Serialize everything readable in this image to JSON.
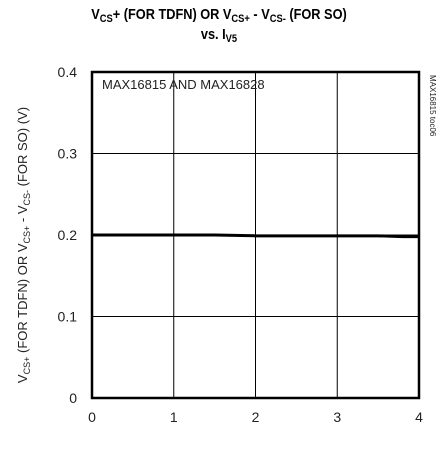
{
  "title_line1": {
    "a": "V",
    "a_sub": "CS",
    "b": "+ (FOR TDFN) OR V",
    "b_sub": "CS+",
    "c": " - V",
    "c_sub": "CS-",
    "d": " (FOR SO)"
  },
  "title_line2": {
    "a": "vs. I",
    "a_sub": "V5"
  },
  "chart_data": {
    "type": "line",
    "ylabel": "V_CS+ (FOR TDFN) OR V_CS+ - V_CS- (FOR SO) (V)",
    "ylabel_parts": [
      "V",
      "CS+",
      " (FOR TDFN) OR V",
      "CS+",
      " - V",
      "CS-",
      " (FOR SO) (V)"
    ],
    "xlim": [
      0,
      4
    ],
    "ylim": [
      0,
      0.4
    ],
    "x_ticks": [
      "0",
      "1",
      "2",
      "3",
      "4"
    ],
    "y_ticks": [
      "0",
      "0.1",
      "0.2",
      "0.3",
      "0.4"
    ],
    "grid": true,
    "annotation": "MAX16815 AND MAX16828",
    "side_label": "MAX16815 toc06",
    "series": [
      {
        "x": [
          0,
          0.5,
          1,
          1.5,
          2,
          2.5,
          3,
          3.5,
          3.8,
          4
        ],
        "y": [
          0.2,
          0.2,
          0.2,
          0.2,
          0.199,
          0.199,
          0.199,
          0.199,
          0.198,
          0.198
        ]
      }
    ]
  }
}
